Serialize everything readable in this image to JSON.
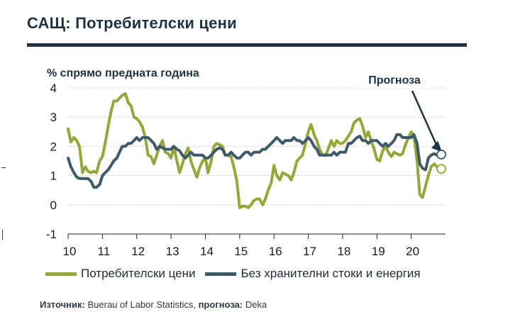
{
  "title": "САЩ: Потребителски цени",
  "source": {
    "label": "Източник:",
    "text": "Buerau of Labor Statistics, ",
    "forecast_label": "прогноза:",
    "forecast_text": "Deka"
  },
  "colors": {
    "cpi": "#94a83a",
    "core": "#3e5968",
    "title": "#1f3341"
  },
  "chart_data": {
    "type": "line",
    "title": "САЩ: Потребителски цени",
    "ylabel": "% спрямо предната година",
    "xlabel": "",
    "xlim": [
      2010.0,
      2021.0
    ],
    "ylim": [
      -1,
      4
    ],
    "yticks": [
      -1,
      0,
      1,
      2,
      3,
      4
    ],
    "xticks": [
      {
        "value": 2010,
        "label": "10"
      },
      {
        "value": 2011,
        "label": "11"
      },
      {
        "value": 2012,
        "label": "12"
      },
      {
        "value": 2013,
        "label": "13"
      },
      {
        "value": 2014,
        "label": "14"
      },
      {
        "value": 2015,
        "label": "15"
      },
      {
        "value": 2016,
        "label": "16"
      },
      {
        "value": 2017,
        "label": "17"
      },
      {
        "value": 2018,
        "label": "18"
      },
      {
        "value": 2019,
        "label": "19"
      },
      {
        "value": 2020,
        "label": "20"
      }
    ],
    "annotation": {
      "text": "Прогноза",
      "target": [
        2020.9,
        1.8
      ]
    },
    "series": [
      {
        "name": "Потребителски цени",
        "color": "#94a83a",
        "forecast_end": 1.23,
        "points": [
          [
            2010.0,
            2.6
          ],
          [
            2010.08,
            2.15
          ],
          [
            2010.17,
            2.3
          ],
          [
            2010.25,
            2.2
          ],
          [
            2010.33,
            2.0
          ],
          [
            2010.42,
            1.1
          ],
          [
            2010.5,
            1.3
          ],
          [
            2010.58,
            1.15
          ],
          [
            2010.67,
            1.1
          ],
          [
            2010.75,
            1.15
          ],
          [
            2010.83,
            1.1
          ],
          [
            2010.92,
            1.5
          ],
          [
            2011.0,
            1.65
          ],
          [
            2011.08,
            2.1
          ],
          [
            2011.17,
            2.7
          ],
          [
            2011.25,
            3.2
          ],
          [
            2011.33,
            3.55
          ],
          [
            2011.42,
            3.55
          ],
          [
            2011.5,
            3.65
          ],
          [
            2011.58,
            3.75
          ],
          [
            2011.67,
            3.8
          ],
          [
            2011.75,
            3.5
          ],
          [
            2011.83,
            3.4
          ],
          [
            2011.92,
            3.0
          ],
          [
            2012.0,
            2.95
          ],
          [
            2012.08,
            2.85
          ],
          [
            2012.17,
            2.65
          ],
          [
            2012.25,
            2.3
          ],
          [
            2012.33,
            1.7
          ],
          [
            2012.42,
            1.65
          ],
          [
            2012.5,
            1.4
          ],
          [
            2012.58,
            1.7
          ],
          [
            2012.67,
            2.0
          ],
          [
            2012.75,
            2.2
          ],
          [
            2012.83,
            1.8
          ],
          [
            2012.92,
            1.75
          ],
          [
            2013.0,
            1.6
          ],
          [
            2013.08,
            2.0
          ],
          [
            2013.17,
            1.5
          ],
          [
            2013.25,
            1.1
          ],
          [
            2013.33,
            1.4
          ],
          [
            2013.42,
            1.75
          ],
          [
            2013.5,
            1.95
          ],
          [
            2013.58,
            1.5
          ],
          [
            2013.67,
            1.2
          ],
          [
            2013.75,
            0.95
          ],
          [
            2013.83,
            1.25
          ],
          [
            2013.92,
            1.5
          ],
          [
            2014.0,
            1.6
          ],
          [
            2014.08,
            1.1
          ],
          [
            2014.17,
            1.5
          ],
          [
            2014.25,
            2.0
          ],
          [
            2014.33,
            2.1
          ],
          [
            2014.42,
            2.05
          ],
          [
            2014.5,
            2.0
          ],
          [
            2014.58,
            1.7
          ],
          [
            2014.67,
            1.7
          ],
          [
            2014.75,
            1.65
          ],
          [
            2014.83,
            1.3
          ],
          [
            2014.92,
            0.8
          ],
          [
            2015.0,
            -0.1
          ],
          [
            2015.08,
            -0.05
          ],
          [
            2015.17,
            -0.05
          ],
          [
            2015.25,
            -0.1
          ],
          [
            2015.33,
            0.0
          ],
          [
            2015.42,
            0.15
          ],
          [
            2015.5,
            0.2
          ],
          [
            2015.58,
            0.2
          ],
          [
            2015.67,
            0.0
          ],
          [
            2015.75,
            0.2
          ],
          [
            2015.83,
            0.5
          ],
          [
            2015.92,
            0.75
          ],
          [
            2016.0,
            1.35
          ],
          [
            2016.08,
            1.0
          ],
          [
            2016.17,
            0.85
          ],
          [
            2016.25,
            1.1
          ],
          [
            2016.33,
            1.05
          ],
          [
            2016.42,
            1.0
          ],
          [
            2016.5,
            0.85
          ],
          [
            2016.58,
            1.1
          ],
          [
            2016.67,
            1.5
          ],
          [
            2016.75,
            1.6
          ],
          [
            2016.83,
            1.7
          ],
          [
            2016.92,
            2.1
          ],
          [
            2017.0,
            2.5
          ],
          [
            2017.08,
            2.75
          ],
          [
            2017.17,
            2.4
          ],
          [
            2017.25,
            2.2
          ],
          [
            2017.33,
            1.9
          ],
          [
            2017.42,
            1.7
          ],
          [
            2017.5,
            1.7
          ],
          [
            2017.58,
            1.9
          ],
          [
            2017.67,
            2.2
          ],
          [
            2017.75,
            2.0
          ],
          [
            2017.83,
            2.2
          ],
          [
            2017.92,
            2.1
          ],
          [
            2018.0,
            2.1
          ],
          [
            2018.08,
            2.2
          ],
          [
            2018.17,
            2.35
          ],
          [
            2018.25,
            2.5
          ],
          [
            2018.33,
            2.8
          ],
          [
            2018.42,
            2.9
          ],
          [
            2018.5,
            2.95
          ],
          [
            2018.58,
            2.7
          ],
          [
            2018.67,
            2.3
          ],
          [
            2018.75,
            2.5
          ],
          [
            2018.83,
            2.2
          ],
          [
            2018.92,
            1.9
          ],
          [
            2019.0,
            1.55
          ],
          [
            2019.08,
            1.5
          ],
          [
            2019.17,
            1.85
          ],
          [
            2019.25,
            2.0
          ],
          [
            2019.33,
            1.8
          ],
          [
            2019.42,
            1.65
          ],
          [
            2019.5,
            1.8
          ],
          [
            2019.58,
            1.75
          ],
          [
            2019.67,
            1.7
          ],
          [
            2019.75,
            1.75
          ],
          [
            2019.83,
            2.05
          ],
          [
            2019.92,
            2.3
          ],
          [
            2020.0,
            2.5
          ],
          [
            2020.08,
            2.35
          ],
          [
            2020.17,
            1.5
          ],
          [
            2020.25,
            0.35
          ],
          [
            2020.33,
            0.25
          ],
          [
            2020.42,
            0.65
          ],
          [
            2020.5,
            1.0
          ],
          [
            2020.58,
            1.3
          ],
          [
            2020.67,
            1.4
          ],
          [
            2020.75,
            1.3
          ]
        ]
      },
      {
        "name": "Без хранителни стоки и енергия",
        "color": "#3e5968",
        "forecast_end": 1.72,
        "points": [
          [
            2010.0,
            1.6
          ],
          [
            2010.08,
            1.3
          ],
          [
            2010.17,
            1.1
          ],
          [
            2010.25,
            0.95
          ],
          [
            2010.33,
            0.9
          ],
          [
            2010.42,
            0.9
          ],
          [
            2010.5,
            0.9
          ],
          [
            2010.58,
            0.9
          ],
          [
            2010.67,
            0.8
          ],
          [
            2010.75,
            0.6
          ],
          [
            2010.83,
            0.6
          ],
          [
            2010.92,
            0.7
          ],
          [
            2011.0,
            1.0
          ],
          [
            2011.08,
            1.1
          ],
          [
            2011.17,
            1.2
          ],
          [
            2011.25,
            1.35
          ],
          [
            2011.33,
            1.5
          ],
          [
            2011.42,
            1.6
          ],
          [
            2011.5,
            1.8
          ],
          [
            2011.58,
            2.0
          ],
          [
            2011.67,
            2.0
          ],
          [
            2011.75,
            2.1
          ],
          [
            2011.83,
            2.1
          ],
          [
            2011.92,
            2.2
          ],
          [
            2012.0,
            2.3
          ],
          [
            2012.08,
            2.2
          ],
          [
            2012.17,
            2.3
          ],
          [
            2012.25,
            2.3
          ],
          [
            2012.33,
            2.3
          ],
          [
            2012.42,
            2.2
          ],
          [
            2012.5,
            2.1
          ],
          [
            2012.58,
            1.9
          ],
          [
            2012.67,
            2.0
          ],
          [
            2012.75,
            1.95
          ],
          [
            2012.83,
            1.9
          ],
          [
            2012.92,
            1.9
          ],
          [
            2013.0,
            1.9
          ],
          [
            2013.08,
            2.0
          ],
          [
            2013.17,
            1.9
          ],
          [
            2013.25,
            1.85
          ],
          [
            2013.33,
            1.7
          ],
          [
            2013.42,
            1.6
          ],
          [
            2013.5,
            1.7
          ],
          [
            2013.58,
            1.8
          ],
          [
            2013.67,
            1.7
          ],
          [
            2013.75,
            1.7
          ],
          [
            2013.83,
            1.7
          ],
          [
            2013.92,
            1.7
          ],
          [
            2014.0,
            1.6
          ],
          [
            2014.08,
            1.6
          ],
          [
            2014.17,
            1.7
          ],
          [
            2014.25,
            1.8
          ],
          [
            2014.33,
            1.9
          ],
          [
            2014.42,
            1.95
          ],
          [
            2014.5,
            1.9
          ],
          [
            2014.58,
            1.7
          ],
          [
            2014.67,
            1.7
          ],
          [
            2014.75,
            1.8
          ],
          [
            2014.83,
            1.7
          ],
          [
            2014.92,
            1.6
          ],
          [
            2015.0,
            1.6
          ],
          [
            2015.08,
            1.7
          ],
          [
            2015.17,
            1.8
          ],
          [
            2015.25,
            1.8
          ],
          [
            2015.33,
            1.7
          ],
          [
            2015.42,
            1.8
          ],
          [
            2015.5,
            1.8
          ],
          [
            2015.58,
            1.8
          ],
          [
            2015.67,
            1.9
          ],
          [
            2015.75,
            1.9
          ],
          [
            2015.83,
            2.0
          ],
          [
            2015.92,
            2.1
          ],
          [
            2016.0,
            2.2
          ],
          [
            2016.08,
            2.3
          ],
          [
            2016.17,
            2.2
          ],
          [
            2016.25,
            2.1
          ],
          [
            2016.33,
            2.2
          ],
          [
            2016.42,
            2.2
          ],
          [
            2016.5,
            2.2
          ],
          [
            2016.58,
            2.3
          ],
          [
            2016.67,
            2.2
          ],
          [
            2016.75,
            2.2
          ],
          [
            2016.83,
            2.1
          ],
          [
            2016.92,
            2.2
          ],
          [
            2017.0,
            2.3
          ],
          [
            2017.08,
            2.2
          ],
          [
            2017.17,
            2.0
          ],
          [
            2017.25,
            1.9
          ],
          [
            2017.33,
            1.7
          ],
          [
            2017.42,
            1.7
          ],
          [
            2017.5,
            1.7
          ],
          [
            2017.58,
            1.7
          ],
          [
            2017.67,
            1.7
          ],
          [
            2017.75,
            1.8
          ],
          [
            2017.83,
            1.7
          ],
          [
            2017.92,
            1.8
          ],
          [
            2018.0,
            1.8
          ],
          [
            2018.08,
            1.8
          ],
          [
            2018.17,
            2.1
          ],
          [
            2018.25,
            2.1
          ],
          [
            2018.33,
            2.2
          ],
          [
            2018.42,
            2.3
          ],
          [
            2018.5,
            2.35
          ],
          [
            2018.58,
            2.2
          ],
          [
            2018.67,
            2.2
          ],
          [
            2018.75,
            2.1
          ],
          [
            2018.83,
            2.2
          ],
          [
            2018.92,
            2.2
          ],
          [
            2019.0,
            2.2
          ],
          [
            2019.08,
            2.1
          ],
          [
            2019.17,
            2.0
          ],
          [
            2019.25,
            2.1
          ],
          [
            2019.33,
            2.0
          ],
          [
            2019.42,
            2.1
          ],
          [
            2019.5,
            2.2
          ],
          [
            2019.58,
            2.4
          ],
          [
            2019.67,
            2.4
          ],
          [
            2019.75,
            2.3
          ],
          [
            2019.83,
            2.3
          ],
          [
            2019.92,
            2.3
          ],
          [
            2020.0,
            2.3
          ],
          [
            2020.08,
            2.4
          ],
          [
            2020.17,
            2.1
          ],
          [
            2020.25,
            1.4
          ],
          [
            2020.33,
            1.25
          ],
          [
            2020.42,
            1.2
          ],
          [
            2020.5,
            1.6
          ],
          [
            2020.58,
            1.7
          ],
          [
            2020.67,
            1.75
          ],
          [
            2020.75,
            1.7
          ]
        ]
      }
    ]
  }
}
